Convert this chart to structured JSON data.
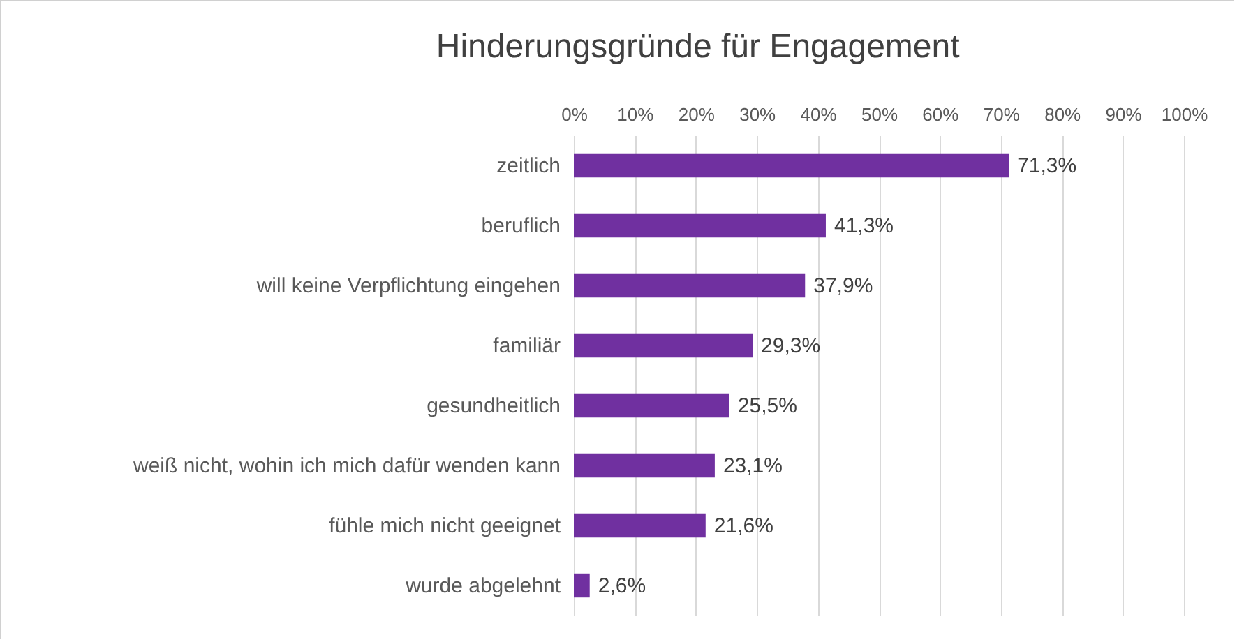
{
  "chart_data": {
    "type": "bar",
    "orientation": "horizontal",
    "title": "Hinderungsgründe für Engagement",
    "categories": [
      "zeitlich",
      "beruflich",
      "will keine Verpflichtung eingehen",
      "familiär",
      "gesundheitlich",
      "weiß nicht, wohin ich mich dafür wenden kann",
      "fühle mich nicht geeignet",
      "wurde abgelehnt"
    ],
    "values": [
      71.3,
      41.3,
      37.9,
      29.3,
      25.5,
      23.1,
      21.6,
      2.6
    ],
    "value_labels": [
      "71,3%",
      "41,3%",
      "37,9%",
      "29,3%",
      "25,5%",
      "23,1%",
      "21,6%",
      "2,6%"
    ],
    "color": "#7030a0",
    "xlim": [
      0,
      100
    ],
    "xticks": [
      {
        "value": 0,
        "label": "0%"
      },
      {
        "value": 10,
        "label": "10%"
      },
      {
        "value": 20,
        "label": "20%"
      },
      {
        "value": 30,
        "label": "30%"
      },
      {
        "value": 40,
        "label": "40%"
      },
      {
        "value": 50,
        "label": "50%"
      },
      {
        "value": 60,
        "label": "60%"
      },
      {
        "value": 70,
        "label": "70%"
      },
      {
        "value": 80,
        "label": "80%"
      },
      {
        "value": 90,
        "label": "90%"
      },
      {
        "value": 100,
        "label": "100%"
      }
    ],
    "grid": "x"
  }
}
